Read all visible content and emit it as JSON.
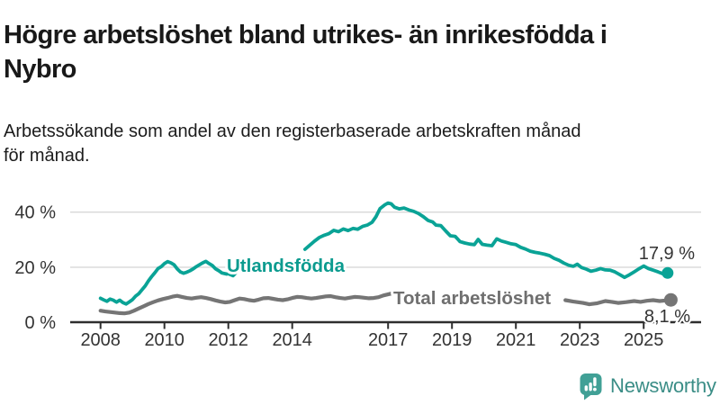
{
  "title": "Högre arbetslöshet bland utrikes- än inrikesfödda i\nNybro",
  "subtitle": "Arbetssökande som andel av den registerbaserade arbetskraften månad\nför månad.",
  "logo": {
    "text": "Newsworthy",
    "icon": "newsworthy-speech-bubble-chart-icon",
    "icon_color": "#41A096",
    "text_color": "#3A8D86"
  },
  "chart_data": {
    "type": "line",
    "unit": "%",
    "description": "Monthly registered unemployment share, Nybro, 2008-2025",
    "grid": true,
    "x_axis": {
      "range": [
        2007.5,
        2026.4
      ],
      "ticks": [
        {
          "label": "2008",
          "year": 2008
        },
        {
          "label": "2010",
          "year": 2010
        },
        {
          "label": "2012",
          "year": 2012
        },
        {
          "label": "2014",
          "year": 2014
        },
        {
          "label": "2017",
          "year": 2017
        },
        {
          "label": "2019",
          "year": 2019
        },
        {
          "label": "2021",
          "year": 2021
        },
        {
          "label": "2023",
          "year": 2023
        },
        {
          "label": "2025",
          "year": 2025
        }
      ]
    },
    "y_axis": {
      "range": [
        0,
        46
      ],
      "ticks": [
        {
          "label": "0 %",
          "value": 0
        },
        {
          "label": "20 %",
          "value": 20
        },
        {
          "label": "40 %",
          "value": 40
        }
      ]
    },
    "series": [
      {
        "name": "Total arbetslöshet",
        "color": "#757575",
        "label_color": "#6F6F6F",
        "end_label": "8,1 %",
        "end_value": 8.1,
        "segments": [
          [
            [
              2008.0,
              4.2
            ],
            [
              2008.15,
              3.9
            ],
            [
              2008.3,
              3.7
            ],
            [
              2008.45,
              3.5
            ],
            [
              2008.6,
              3.3
            ],
            [
              2008.75,
              3.2
            ],
            [
              2008.9,
              3.5
            ],
            [
              2009.05,
              4.2
            ],
            [
              2009.2,
              5.0
            ],
            [
              2009.35,
              5.8
            ],
            [
              2009.5,
              6.6
            ],
            [
              2009.65,
              7.3
            ],
            [
              2009.8,
              7.9
            ],
            [
              2009.95,
              8.4
            ],
            [
              2010.1,
              8.8
            ],
            [
              2010.25,
              9.3
            ],
            [
              2010.4,
              9.6
            ],
            [
              2010.55,
              9.2
            ],
            [
              2010.7,
              8.8
            ],
            [
              2010.85,
              8.6
            ],
            [
              2011.0,
              8.9
            ],
            [
              2011.15,
              9.1
            ],
            [
              2011.3,
              8.8
            ],
            [
              2011.45,
              8.4
            ],
            [
              2011.6,
              7.9
            ],
            [
              2011.75,
              7.5
            ],
            [
              2011.9,
              7.2
            ],
            [
              2012.05,
              7.4
            ],
            [
              2012.2,
              8.0
            ],
            [
              2012.35,
              8.6
            ],
            [
              2012.5,
              8.4
            ],
            [
              2012.65,
              8.0
            ],
            [
              2012.8,
              7.8
            ],
            [
              2012.95,
              8.2
            ],
            [
              2013.1,
              8.7
            ],
            [
              2013.25,
              8.8
            ],
            [
              2013.4,
              8.5
            ],
            [
              2013.55,
              8.2
            ],
            [
              2013.7,
              8.0
            ],
            [
              2013.85,
              8.3
            ],
            [
              2014.0,
              8.8
            ],
            [
              2014.15,
              9.2
            ],
            [
              2014.3,
              9.1
            ],
            [
              2014.45,
              8.8
            ],
            [
              2014.6,
              8.6
            ],
            [
              2014.75,
              8.8
            ],
            [
              2014.9,
              9.1
            ],
            [
              2015.05,
              9.4
            ],
            [
              2015.2,
              9.5
            ],
            [
              2015.35,
              9.1
            ],
            [
              2015.5,
              8.8
            ],
            [
              2015.65,
              8.6
            ],
            [
              2015.8,
              8.9
            ],
            [
              2015.95,
              9.2
            ],
            [
              2016.1,
              9.1
            ],
            [
              2016.25,
              8.9
            ],
            [
              2016.4,
              8.7
            ],
            [
              2016.55,
              8.8
            ],
            [
              2016.7,
              9.1
            ],
            [
              2016.85,
              9.7
            ],
            [
              2017.1,
              10.4
            ]
          ],
          [
            [
              2022.55,
              8.0
            ],
            [
              2022.8,
              7.5
            ],
            [
              2023.1,
              7.0
            ],
            [
              2023.3,
              6.5
            ],
            [
              2023.55,
              6.9
            ],
            [
              2023.8,
              7.7
            ],
            [
              2024.0,
              7.4
            ],
            [
              2024.2,
              7.0
            ],
            [
              2024.45,
              7.3
            ],
            [
              2024.7,
              7.7
            ],
            [
              2024.9,
              7.4
            ],
            [
              2025.1,
              7.8
            ],
            [
              2025.3,
              8.0
            ],
            [
              2025.5,
              7.7
            ],
            [
              2025.7,
              7.9
            ],
            [
              2025.85,
              8.1
            ]
          ]
        ]
      },
      {
        "name": "Utlandsfödda",
        "color": "#0AA396",
        "label_color": "#0B9B8F",
        "end_label": "17,9 %",
        "end_value": 17.9,
        "segments": [
          [
            [
              2008.0,
              8.7
            ],
            [
              2008.1,
              8.1
            ],
            [
              2008.2,
              7.6
            ],
            [
              2008.3,
              8.4
            ],
            [
              2008.4,
              8.0
            ],
            [
              2008.5,
              7.3
            ],
            [
              2008.6,
              8.0
            ],
            [
              2008.7,
              7.1
            ],
            [
              2008.8,
              6.6
            ],
            [
              2008.9,
              7.4
            ],
            [
              2009.0,
              8.2
            ],
            [
              2009.1,
              9.5
            ],
            [
              2009.2,
              10.4
            ],
            [
              2009.3,
              11.8
            ],
            [
              2009.4,
              13.2
            ],
            [
              2009.5,
              15.0
            ],
            [
              2009.6,
              16.6
            ],
            [
              2009.7,
              18.0
            ],
            [
              2009.8,
              19.5
            ],
            [
              2009.9,
              20.2
            ],
            [
              2010.0,
              21.3
            ],
            [
              2010.1,
              22.0
            ],
            [
              2010.2,
              21.6
            ],
            [
              2010.3,
              20.9
            ],
            [
              2010.4,
              19.4
            ],
            [
              2010.5,
              18.3
            ],
            [
              2010.6,
              17.8
            ],
            [
              2010.7,
              18.2
            ],
            [
              2010.8,
              18.7
            ],
            [
              2010.9,
              19.4
            ],
            [
              2011.0,
              20.2
            ],
            [
              2011.1,
              20.9
            ],
            [
              2011.2,
              21.6
            ],
            [
              2011.3,
              22.1
            ],
            [
              2011.4,
              21.3
            ],
            [
              2011.5,
              20.6
            ],
            [
              2011.6,
              19.4
            ],
            [
              2011.7,
              18.7
            ],
            [
              2011.8,
              17.9
            ],
            [
              2011.95,
              17.5
            ]
          ],
          [
            [
              2012.0,
              17.6
            ],
            [
              2012.15,
              16.9
            ],
            [
              2012.3,
              18.7
            ]
          ],
          [
            [
              2014.4,
              26.5
            ],
            [
              2014.55,
              28.0
            ],
            [
              2014.7,
              29.5
            ],
            [
              2014.85,
              30.8
            ],
            [
              2015.0,
              31.6
            ],
            [
              2015.15,
              32.2
            ],
            [
              2015.3,
              33.4
            ],
            [
              2015.45,
              32.9
            ],
            [
              2015.6,
              33.9
            ],
            [
              2015.75,
              33.3
            ],
            [
              2015.9,
              34.1
            ],
            [
              2016.05,
              33.8
            ],
            [
              2016.2,
              34.8
            ],
            [
              2016.35,
              35.3
            ],
            [
              2016.5,
              36.3
            ],
            [
              2016.62,
              38.3
            ],
            [
              2016.75,
              41.3
            ],
            [
              2016.9,
              42.7
            ],
            [
              2017.0,
              43.3
            ],
            [
              2017.1,
              43.0
            ],
            [
              2017.2,
              41.8
            ],
            [
              2017.35,
              41.2
            ],
            [
              2017.5,
              41.5
            ],
            [
              2017.65,
              40.8
            ],
            [
              2017.8,
              40.3
            ],
            [
              2017.95,
              39.5
            ],
            [
              2018.1,
              38.4
            ],
            [
              2018.25,
              37.0
            ],
            [
              2018.4,
              36.4
            ],
            [
              2018.5,
              35.3
            ],
            [
              2018.65,
              35.1
            ],
            [
              2018.8,
              33.2
            ],
            [
              2018.95,
              31.4
            ],
            [
              2019.1,
              31.2
            ],
            [
              2019.25,
              29.3
            ],
            [
              2019.4,
              28.8
            ],
            [
              2019.55,
              28.4
            ],
            [
              2019.7,
              28.2
            ],
            [
              2019.82,
              30.1
            ],
            [
              2019.95,
              28.3
            ],
            [
              2020.1,
              28.0
            ],
            [
              2020.25,
              27.8
            ],
            [
              2020.4,
              30.3
            ],
            [
              2020.55,
              29.5
            ],
            [
              2020.7,
              29.0
            ],
            [
              2020.85,
              28.5
            ],
            [
              2021.0,
              28.2
            ],
            [
              2021.15,
              27.2
            ],
            [
              2021.3,
              26.6
            ],
            [
              2021.45,
              25.8
            ],
            [
              2021.6,
              25.4
            ],
            [
              2021.75,
              25.1
            ],
            [
              2021.9,
              24.7
            ],
            [
              2022.05,
              24.2
            ],
            [
              2022.2,
              23.2
            ],
            [
              2022.35,
              22.5
            ],
            [
              2022.5,
              21.5
            ],
            [
              2022.65,
              20.7
            ],
            [
              2022.8,
              20.3
            ],
            [
              2022.92,
              21.1
            ],
            [
              2023.05,
              19.9
            ],
            [
              2023.2,
              19.3
            ],
            [
              2023.35,
              18.5
            ],
            [
              2023.5,
              18.9
            ],
            [
              2023.65,
              19.5
            ],
            [
              2023.8,
              19.0
            ],
            [
              2023.95,
              18.9
            ],
            [
              2024.1,
              18.3
            ],
            [
              2024.25,
              17.3
            ],
            [
              2024.4,
              16.3
            ],
            [
              2024.55,
              17.2
            ],
            [
              2024.7,
              18.3
            ],
            [
              2024.85,
              19.4
            ],
            [
              2025.0,
              20.4
            ],
            [
              2025.15,
              19.5
            ],
            [
              2025.3,
              18.9
            ],
            [
              2025.45,
              18.3
            ],
            [
              2025.6,
              17.6
            ],
            [
              2025.75,
              17.9
            ]
          ]
        ]
      }
    ]
  }
}
